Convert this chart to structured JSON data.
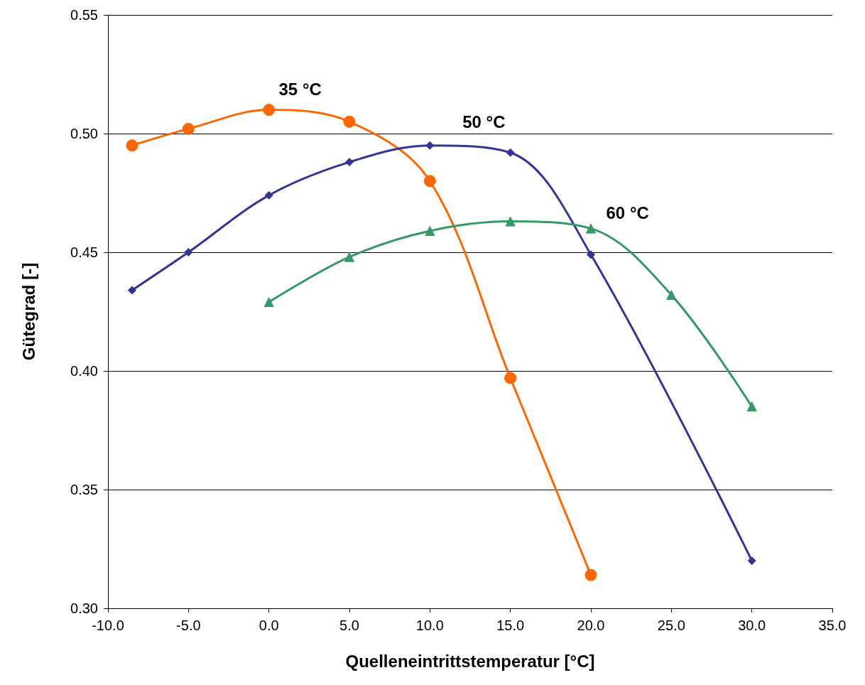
{
  "chart_data": {
    "type": "line",
    "xlabel": "Quelleneintrittstemperatur [°C]",
    "ylabel": "Gütegrad [-]",
    "xlim": [
      -10,
      35
    ],
    "xticks": [
      {
        "value": -10,
        "label": "-10.0"
      },
      {
        "value": -5,
        "label": "-5.0"
      },
      {
        "value": 0,
        "label": "0.0"
      },
      {
        "value": 5,
        "label": "5.0"
      },
      {
        "value": 10,
        "label": "10.0"
      },
      {
        "value": 15,
        "label": "15.0"
      },
      {
        "value": 20,
        "label": "20.0"
      },
      {
        "value": 25,
        "label": "25.0"
      },
      {
        "value": 30,
        "label": "30.0"
      },
      {
        "value": 35,
        "label": "35.0"
      }
    ],
    "ylim": [
      0.3,
      0.55
    ],
    "yticks": [
      {
        "value": 0.3,
        "label": "0.30"
      },
      {
        "value": 0.35,
        "label": "0.35"
      },
      {
        "value": 0.4,
        "label": "0.40"
      },
      {
        "value": 0.45,
        "label": "0.45"
      },
      {
        "value": 0.5,
        "label": "0.50"
      },
      {
        "value": 0.55,
        "label": "0.55"
      }
    ],
    "grid": "y",
    "line_style": "solid",
    "series": [
      {
        "name": "35 °C",
        "color": "#ff6600",
        "marker": "circle",
        "x": [
          -8.5,
          -5,
          0,
          5,
          10,
          15,
          20
        ],
        "values": [
          0.495,
          0.502,
          0.51,
          0.505,
          0.48,
          0.397,
          0.314
        ]
      },
      {
        "name": "50 °C",
        "color": "#333399",
        "marker": "diamond",
        "x": [
          -8.5,
          -5,
          0,
          5,
          10,
          15,
          20,
          30
        ],
        "values": [
          0.434,
          0.45,
          0.474,
          0.488,
          0.495,
          0.492,
          0.449,
          0.32
        ]
      },
      {
        "name": "60 °C",
        "color": "#339966",
        "marker": "triangle",
        "x": [
          0,
          5,
          10,
          15,
          20,
          25,
          30
        ],
        "values": [
          0.429,
          0.448,
          0.459,
          0.463,
          0.46,
          0.432,
          0.385
        ]
      }
    ]
  }
}
